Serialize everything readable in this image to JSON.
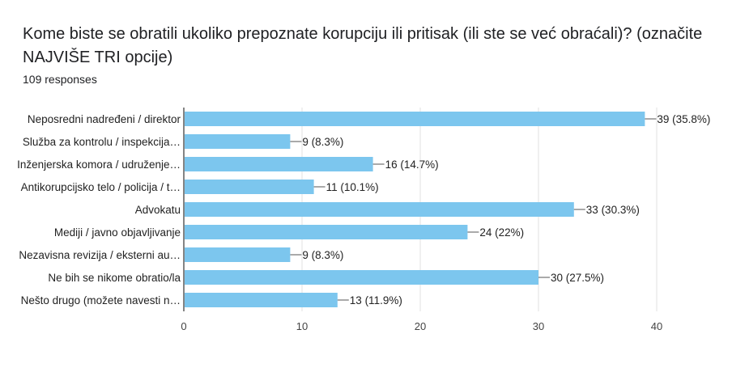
{
  "header": {
    "title": "Kome biste se obratili ukoliko prepoznate korupciju ili pritisak (ili ste se već obraćali)?   (označite NAJVIŠE TRI opcije)",
    "responses": "109 responses"
  },
  "chart_data": {
    "type": "bar",
    "orientation": "horizontal",
    "categories": [
      "Neposredni nadređeni / direktor",
      "Služba za kontrolu / inspekcija…",
      "Inženjerska komora / udruženje…",
      "Antikorupcijsko telo / policija / t…",
      "Advokatu",
      "Mediji / javno objavljivanje",
      "Nezavisna revizija / eksterni au…",
      "Ne bih se nikome obratio/la",
      "Nešto drugo (možete navesti n…"
    ],
    "values": [
      39,
      9,
      16,
      11,
      33,
      24,
      9,
      30,
      13
    ],
    "data_labels": [
      "39 (35.8%)",
      "9 (8.3%)",
      "16 (14.7%)",
      "11 (10.1%)",
      "33 (30.3%)",
      "24 (22%)",
      "9 (8.3%)",
      "30 (27.5%)",
      "13 (11.9%)"
    ],
    "xlim": [
      0,
      40
    ],
    "xticks": [
      0,
      10,
      20,
      30,
      40
    ],
    "bar_color": "#7cc6ee",
    "grid": true
  }
}
